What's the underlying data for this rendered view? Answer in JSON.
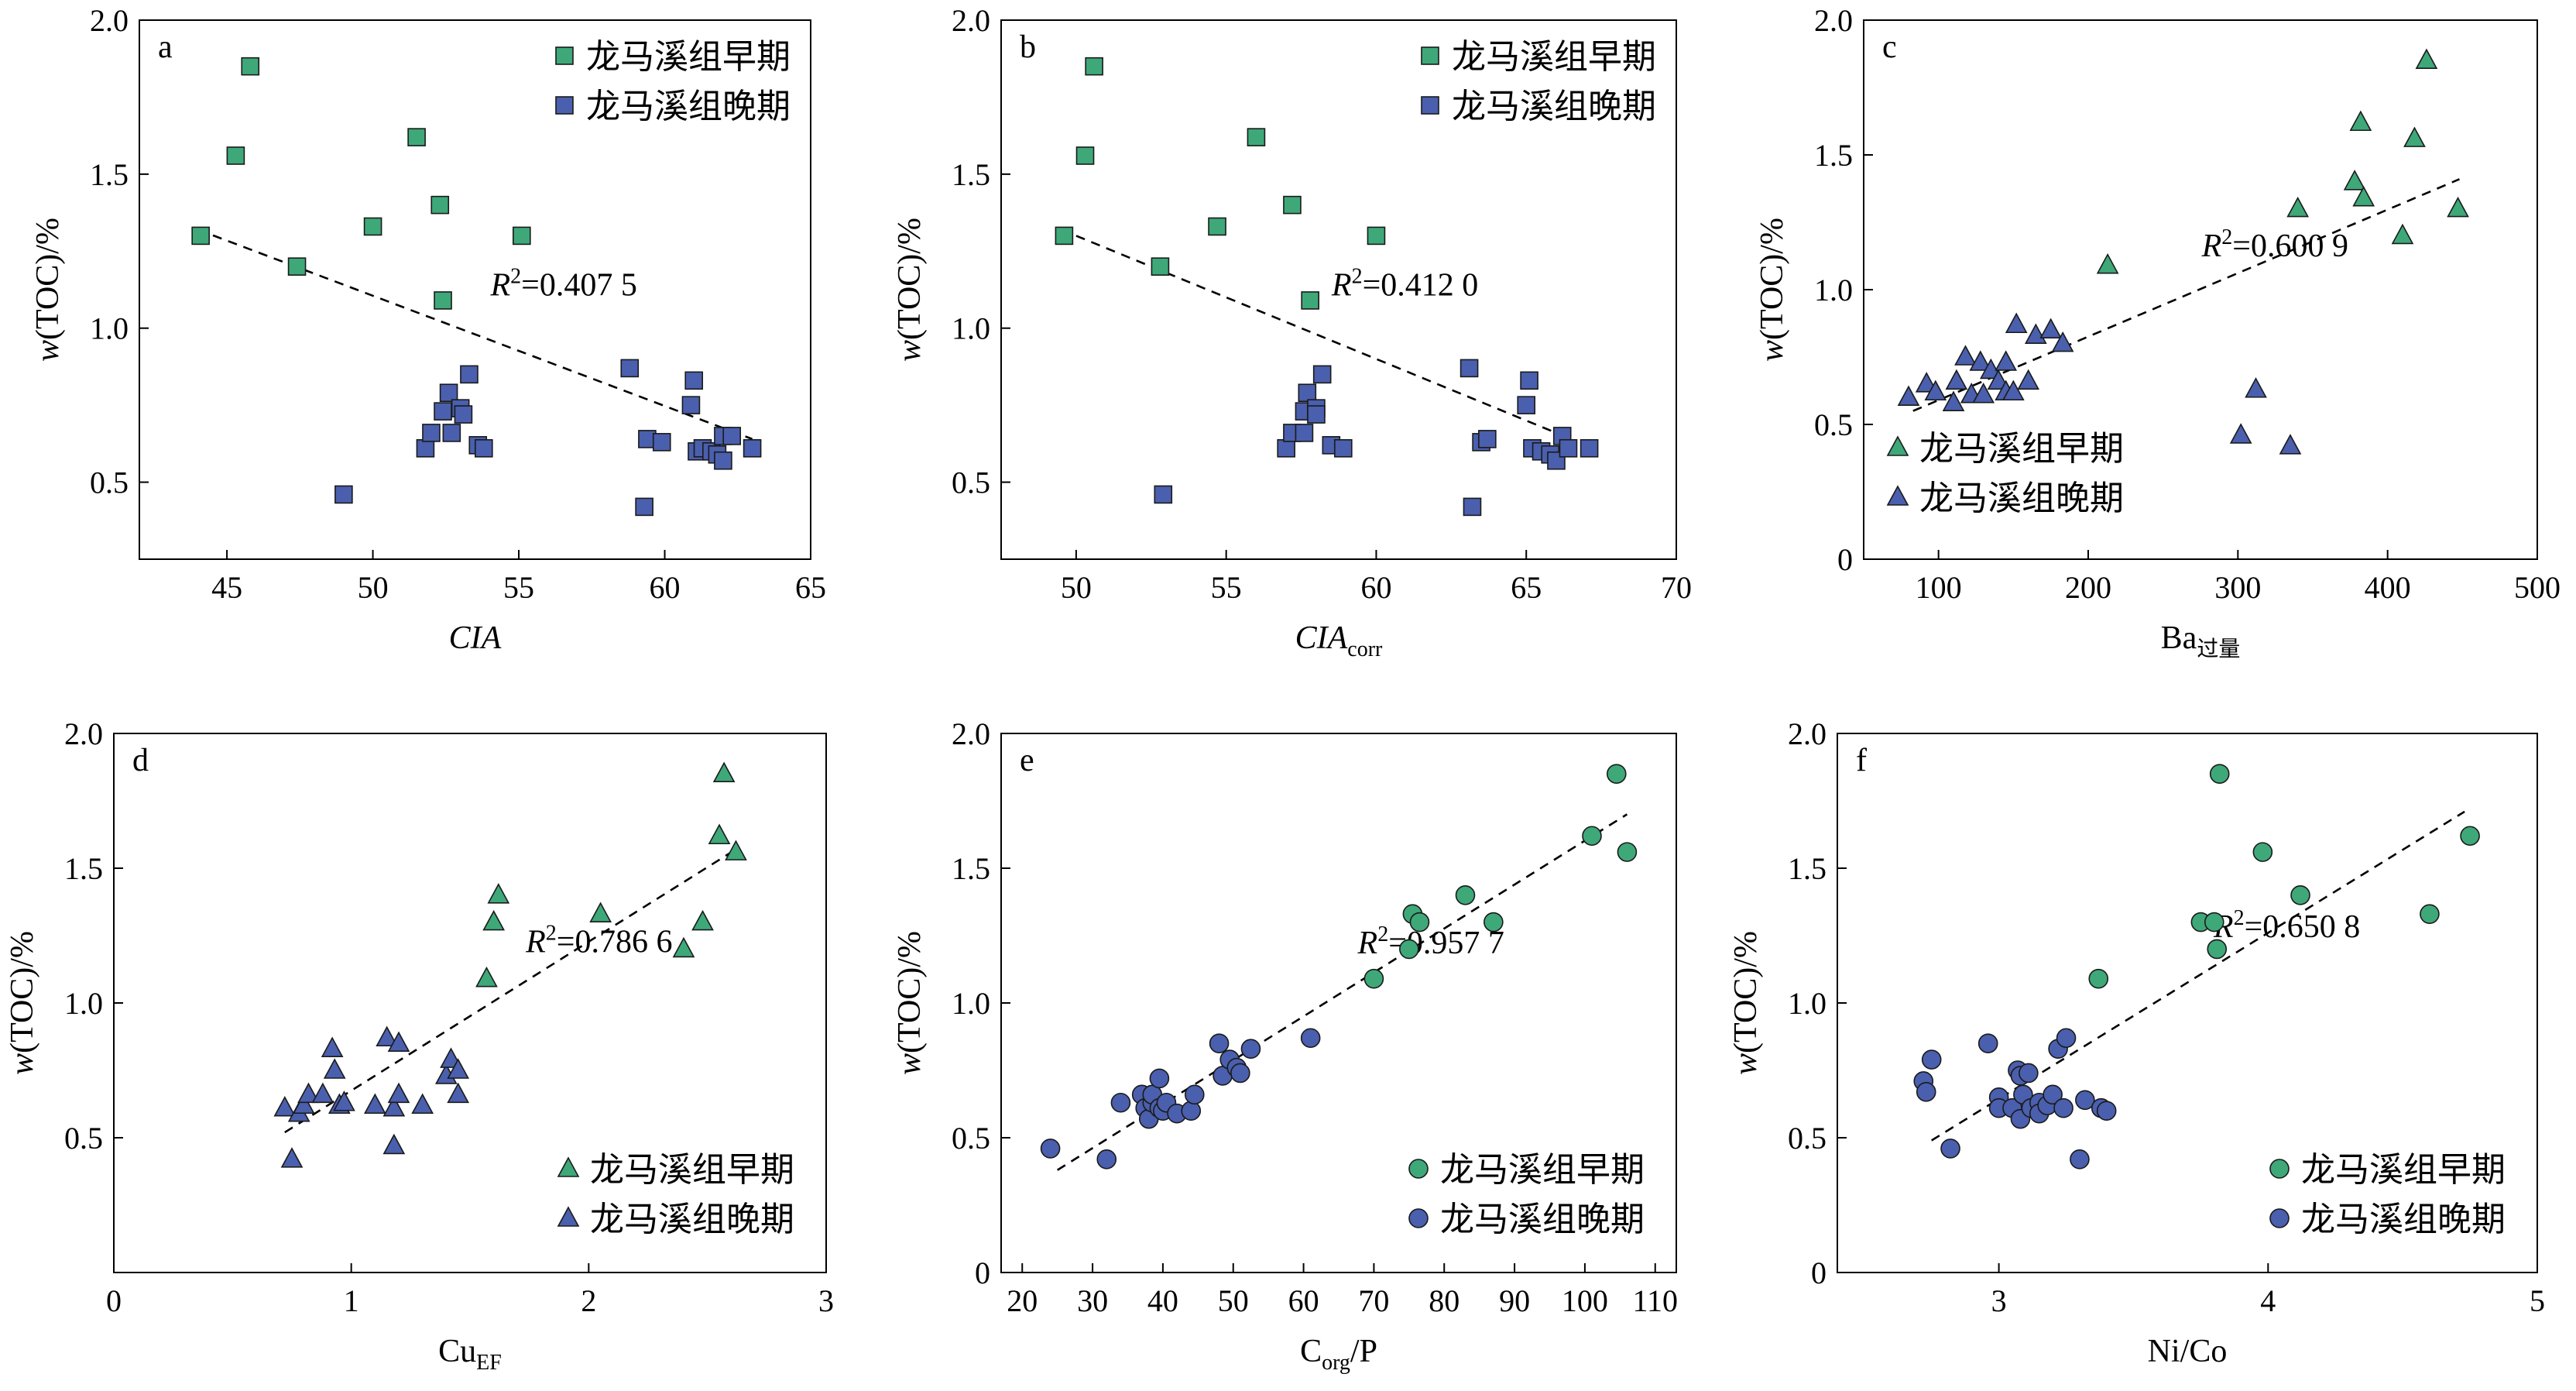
{
  "chart_data": [
    {
      "type": "scatter",
      "panel_label": "a",
      "marker": "square",
      "xlabel": "CIA",
      "xlabel_italic": true,
      "xlabel_sub": "",
      "ylabel": "w(TOC)/%",
      "xlim": [
        42,
        65
      ],
      "ylim": [
        0.25,
        2.0
      ],
      "xticks": [
        45,
        50,
        55,
        60,
        65
      ],
      "yticks": [
        0.5,
        1.0,
        1.5,
        2.0
      ],
      "ytick_labels": [
        "0.5",
        "1.0",
        "1.5",
        "2.0"
      ],
      "legend_position": "top-right",
      "r2_label": "=0.407 5",
      "trendline": [
        [
          44,
          1.32
        ],
        [
          63,
          0.64
        ]
      ],
      "series": [
        {
          "name": "龙马溪组早期",
          "color": "#3ea879",
          "points": [
            [
              44.1,
              1.3
            ],
            [
              45.3,
              1.56
            ],
            [
              45.8,
              1.85
            ],
            [
              47.4,
              1.2
            ],
            [
              50.0,
              1.33
            ],
            [
              51.5,
              1.62
            ],
            [
              52.3,
              1.4
            ],
            [
              52.4,
              1.09
            ],
            [
              55.1,
              1.3
            ]
          ]
        },
        {
          "name": "龙马溪组晚期",
          "color": "#4a5fad",
          "points": [
            [
              49.0,
              0.46
            ],
            [
              51.8,
              0.61
            ],
            [
              52.0,
              0.66
            ],
            [
              52.4,
              0.73
            ],
            [
              52.6,
              0.79
            ],
            [
              52.7,
              0.66
            ],
            [
              53.0,
              0.74
            ],
            [
              53.1,
              0.72
            ],
            [
              53.3,
              0.85
            ],
            [
              53.6,
              0.62
            ],
            [
              53.8,
              0.61
            ],
            [
              58.8,
              0.87
            ],
            [
              59.3,
              0.42
            ],
            [
              59.4,
              0.64
            ],
            [
              59.9,
              0.63
            ],
            [
              61.0,
              0.83
            ],
            [
              60.9,
              0.75
            ],
            [
              61.1,
              0.6
            ],
            [
              61.3,
              0.61
            ],
            [
              61.6,
              0.6
            ],
            [
              61.8,
              0.59
            ],
            [
              62.0,
              0.57
            ],
            [
              62.0,
              0.65
            ],
            [
              62.3,
              0.65
            ],
            [
              63.0,
              0.61
            ]
          ]
        }
      ]
    },
    {
      "type": "scatter",
      "panel_label": "b",
      "marker": "square",
      "xlabel": "CIA",
      "xlabel_italic": true,
      "xlabel_sub": "corr",
      "ylabel": "w(TOC)/%",
      "xlim": [
        47.5,
        70
      ],
      "ylim": [
        0.25,
        2.0
      ],
      "xticks": [
        50,
        55,
        60,
        65,
        70
      ],
      "yticks": [
        0.5,
        1.0,
        1.5,
        2.0
      ],
      "ytick_labels": [
        "0.5",
        "1.0",
        "1.5",
        "2.0"
      ],
      "legend_position": "top-right",
      "r2_label": "=0.412 0",
      "trendline": [
        [
          49.5,
          1.32
        ],
        [
          66.5,
          0.64
        ]
      ],
      "series": [
        {
          "name": "龙马溪组早期",
          "color": "#3ea879",
          "points": [
            [
              49.6,
              1.3
            ],
            [
              50.3,
              1.56
            ],
            [
              50.6,
              1.85
            ],
            [
              52.8,
              1.2
            ],
            [
              54.7,
              1.33
            ],
            [
              56.0,
              1.62
            ],
            [
              57.2,
              1.4
            ],
            [
              57.8,
              1.09
            ],
            [
              60.0,
              1.3
            ]
          ]
        },
        {
          "name": "龙马溪组晚期",
          "color": "#4a5fad",
          "points": [
            [
              52.9,
              0.46
            ],
            [
              57.0,
              0.61
            ],
            [
              57.2,
              0.66
            ],
            [
              57.6,
              0.73
            ],
            [
              57.7,
              0.79
            ],
            [
              57.6,
              0.66
            ],
            [
              58.0,
              0.74
            ],
            [
              58.0,
              0.72
            ],
            [
              58.2,
              0.85
            ],
            [
              58.5,
              0.62
            ],
            [
              58.9,
              0.61
            ],
            [
              63.1,
              0.87
            ],
            [
              63.2,
              0.42
            ],
            [
              63.5,
              0.63
            ],
            [
              63.7,
              0.64
            ],
            [
              65.1,
              0.83
            ],
            [
              65.0,
              0.75
            ],
            [
              65.2,
              0.61
            ],
            [
              65.5,
              0.6
            ],
            [
              65.8,
              0.59
            ],
            [
              66.0,
              0.57
            ],
            [
              66.2,
              0.65
            ],
            [
              66.4,
              0.61
            ],
            [
              67.1,
              0.61
            ]
          ]
        }
      ]
    },
    {
      "type": "scatter",
      "panel_label": "c",
      "marker": "triangle",
      "xlabel": "Ba",
      "xlabel_italic": false,
      "xlabel_sub": "过量",
      "ylabel": "w(TOC)/%",
      "xlim": [
        50,
        500
      ],
      "ylim": [
        0,
        2.0
      ],
      "xticks": [
        100,
        200,
        300,
        400,
        500
      ],
      "yticks": [
        0,
        0.5,
        1.0,
        1.5,
        2.0
      ],
      "ytick_labels": [
        "0",
        "0.5",
        "1.0",
        "1.5",
        "2.0"
      ],
      "legend_position": "bottom-left",
      "r2_label": "=0.600 9",
      "trendline": [
        [
          83,
          0.55
        ],
        [
          448,
          1.41
        ]
      ],
      "series": [
        {
          "name": "龙马溪组早期",
          "color": "#3ea879",
          "points": [
            [
              213,
              1.09
            ],
            [
              340,
              1.3
            ],
            [
              378,
              1.4
            ],
            [
              382,
              1.62
            ],
            [
              384,
              1.34
            ],
            [
              418,
              1.56
            ],
            [
              410,
              1.2
            ],
            [
              426,
              1.85
            ],
            [
              447,
              1.3
            ]
          ]
        },
        {
          "name": "龙马溪组晚期",
          "color": "#4a5fad",
          "points": [
            [
              80,
              0.6
            ],
            [
              92,
              0.65
            ],
            [
              98,
              0.62
            ],
            [
              110,
              0.58
            ],
            [
              112,
              0.66
            ],
            [
              118,
              0.75
            ],
            [
              122,
              0.61
            ],
            [
              128,
              0.73
            ],
            [
              130,
              0.61
            ],
            [
              135,
              0.7
            ],
            [
              140,
              0.66
            ],
            [
              145,
              0.62
            ],
            [
              145,
              0.73
            ],
            [
              152,
              0.87
            ],
            [
              160,
              0.66
            ],
            [
              165,
              0.83
            ],
            [
              175,
              0.85
            ],
            [
              183,
              0.8
            ],
            [
              150,
              0.62
            ],
            [
              302,
              0.46
            ],
            [
              312,
              0.63
            ],
            [
              335,
              0.42
            ]
          ]
        }
      ]
    },
    {
      "type": "scatter",
      "panel_label": "d",
      "marker": "triangle",
      "xlabel": "Cu",
      "xlabel_italic": false,
      "xlabel_sub": "EF",
      "ylabel": "w(TOC)/%",
      "xlim": [
        0,
        3
      ],
      "ylim": [
        0,
        2.0
      ],
      "xticks": [
        0,
        1,
        2,
        3
      ],
      "yticks": [
        0.5,
        1.0,
        1.5,
        2.0
      ],
      "ytick_labels": [
        "0.5",
        "1.0",
        "1.5",
        "2.0"
      ],
      "legend_position": "bottom-right",
      "r2_label": "=0.786 6",
      "trendline": [
        [
          0.72,
          0.52
        ],
        [
          2.62,
          1.57
        ]
      ],
      "series": [
        {
          "name": "龙马溪组早期",
          "color": "#3ea879",
          "points": [
            [
              1.57,
              1.09
            ],
            [
              1.6,
              1.3
            ],
            [
              1.62,
              1.4
            ],
            [
              2.05,
              1.33
            ],
            [
              2.4,
              1.2
            ],
            [
              2.48,
              1.3
            ],
            [
              2.55,
              1.62
            ],
            [
              2.57,
              1.85
            ],
            [
              2.62,
              1.56
            ]
          ]
        },
        {
          "name": "龙马溪组晚期",
          "color": "#4a5fad",
          "points": [
            [
              0.72,
              0.61
            ],
            [
              0.75,
              0.42
            ],
            [
              0.78,
              0.59
            ],
            [
              0.8,
              0.62
            ],
            [
              0.82,
              0.66
            ],
            [
              0.88,
              0.66
            ],
            [
              0.92,
              0.83
            ],
            [
              0.93,
              0.75
            ],
            [
              0.95,
              0.62
            ],
            [
              0.97,
              0.63
            ],
            [
              1.1,
              0.62
            ],
            [
              1.15,
              0.87
            ],
            [
              1.18,
              0.61
            ],
            [
              1.18,
              0.47
            ],
            [
              1.2,
              0.66
            ],
            [
              1.2,
              0.85
            ],
            [
              1.3,
              0.62
            ],
            [
              1.4,
              0.73
            ],
            [
              1.42,
              0.79
            ],
            [
              1.45,
              0.66
            ],
            [
              1.45,
              0.75
            ]
          ]
        }
      ]
    },
    {
      "type": "scatter",
      "panel_label": "e",
      "marker": "circle",
      "xlabel": "C",
      "xlabel_italic": false,
      "xlabel_sub": "org",
      "xlabel_suffix": "/P",
      "ylabel": "w(TOC)/%",
      "xlim": [
        17,
        113
      ],
      "ylim": [
        0,
        2.0
      ],
      "xticks": [
        20,
        30,
        40,
        50,
        60,
        70,
        80,
        90,
        100,
        110
      ],
      "yticks": [
        0,
        0.5,
        1.0,
        1.5,
        2.0
      ],
      "ytick_labels": [
        "0",
        "0.5",
        "1.0",
        "1.5",
        "2.0"
      ],
      "legend_position": "bottom-right",
      "r2_label": "=0.957 7",
      "trendline": [
        [
          25,
          0.38
        ],
        [
          106,
          1.7
        ]
      ],
      "series": [
        {
          "name": "龙马溪组早期",
          "color": "#3ea879",
          "points": [
            [
              70,
              1.09
            ],
            [
              75,
              1.2
            ],
            [
              75.5,
              1.33
            ],
            [
              76.5,
              1.3
            ],
            [
              83,
              1.4
            ],
            [
              87,
              1.3
            ],
            [
              101,
              1.62
            ],
            [
              104.5,
              1.85
            ],
            [
              106,
              1.56
            ]
          ]
        },
        {
          "name": "龙马溪组晚期",
          "color": "#4a5fad",
          "points": [
            [
              24,
              0.46
            ],
            [
              32,
              0.42
            ],
            [
              34,
              0.63
            ],
            [
              37,
              0.66
            ],
            [
              37.5,
              0.61
            ],
            [
              38,
              0.57
            ],
            [
              38.5,
              0.63
            ],
            [
              38.5,
              0.66
            ],
            [
              39.5,
              0.72
            ],
            [
              39.5,
              0.61
            ],
            [
              40,
              0.6
            ],
            [
              40.5,
              0.63
            ],
            [
              42,
              0.59
            ],
            [
              44,
              0.6
            ],
            [
              44.5,
              0.66
            ],
            [
              48,
              0.85
            ],
            [
              48.5,
              0.73
            ],
            [
              49.5,
              0.79
            ],
            [
              50.5,
              0.76
            ],
            [
              51,
              0.74
            ],
            [
              52.5,
              0.83
            ],
            [
              61,
              0.87
            ]
          ]
        }
      ]
    },
    {
      "type": "scatter",
      "panel_label": "f",
      "marker": "circle",
      "xlabel": "Ni/Co",
      "xlabel_italic": false,
      "xlabel_sub": "",
      "ylabel": "w(TOC)/%",
      "xlim": [
        2.4,
        5
      ],
      "ylim": [
        0,
        2.0
      ],
      "xticks": [
        3,
        4,
        5
      ],
      "yticks": [
        0,
        0.5,
        1.0,
        1.5,
        2.0
      ],
      "ytick_labels": [
        "0",
        "0.5",
        "1.0",
        "1.5",
        "2.0"
      ],
      "legend_position": "bottom-right",
      "r2_label": "=0.650 8",
      "trendline": [
        [
          2.75,
          0.49
        ],
        [
          4.73,
          1.71
        ]
      ],
      "series": [
        {
          "name": "龙马溪组早期",
          "color": "#3ea879",
          "points": [
            [
              3.37,
              1.09
            ],
            [
              3.75,
              1.3
            ],
            [
              3.8,
              1.3
            ],
            [
              3.81,
              1.2
            ],
            [
              3.82,
              1.85
            ],
            [
              3.98,
              1.56
            ],
            [
              4.12,
              1.4
            ],
            [
              4.6,
              1.33
            ],
            [
              4.75,
              1.62
            ]
          ]
        },
        {
          "name": "龙马溪组晚期",
          "color": "#4a5fad",
          "points": [
            [
              2.72,
              0.71
            ],
            [
              2.73,
              0.67
            ],
            [
              2.75,
              0.79
            ],
            [
              2.82,
              0.46
            ],
            [
              2.96,
              0.85
            ],
            [
              3.0,
              0.65
            ],
            [
              3.0,
              0.61
            ],
            [
              3.05,
              0.61
            ],
            [
              3.07,
              0.75
            ],
            [
              3.08,
              0.73
            ],
            [
              3.08,
              0.57
            ],
            [
              3.09,
              0.66
            ],
            [
              3.11,
              0.74
            ],
            [
              3.12,
              0.61
            ],
            [
              3.15,
              0.63
            ],
            [
              3.15,
              0.59
            ],
            [
              3.18,
              0.62
            ],
            [
              3.2,
              0.66
            ],
            [
              3.22,
              0.83
            ],
            [
              3.24,
              0.61
            ],
            [
              3.25,
              0.87
            ],
            [
              3.3,
              0.42
            ],
            [
              3.32,
              0.64
            ],
            [
              3.38,
              0.61
            ],
            [
              3.4,
              0.6
            ]
          ]
        }
      ]
    }
  ]
}
